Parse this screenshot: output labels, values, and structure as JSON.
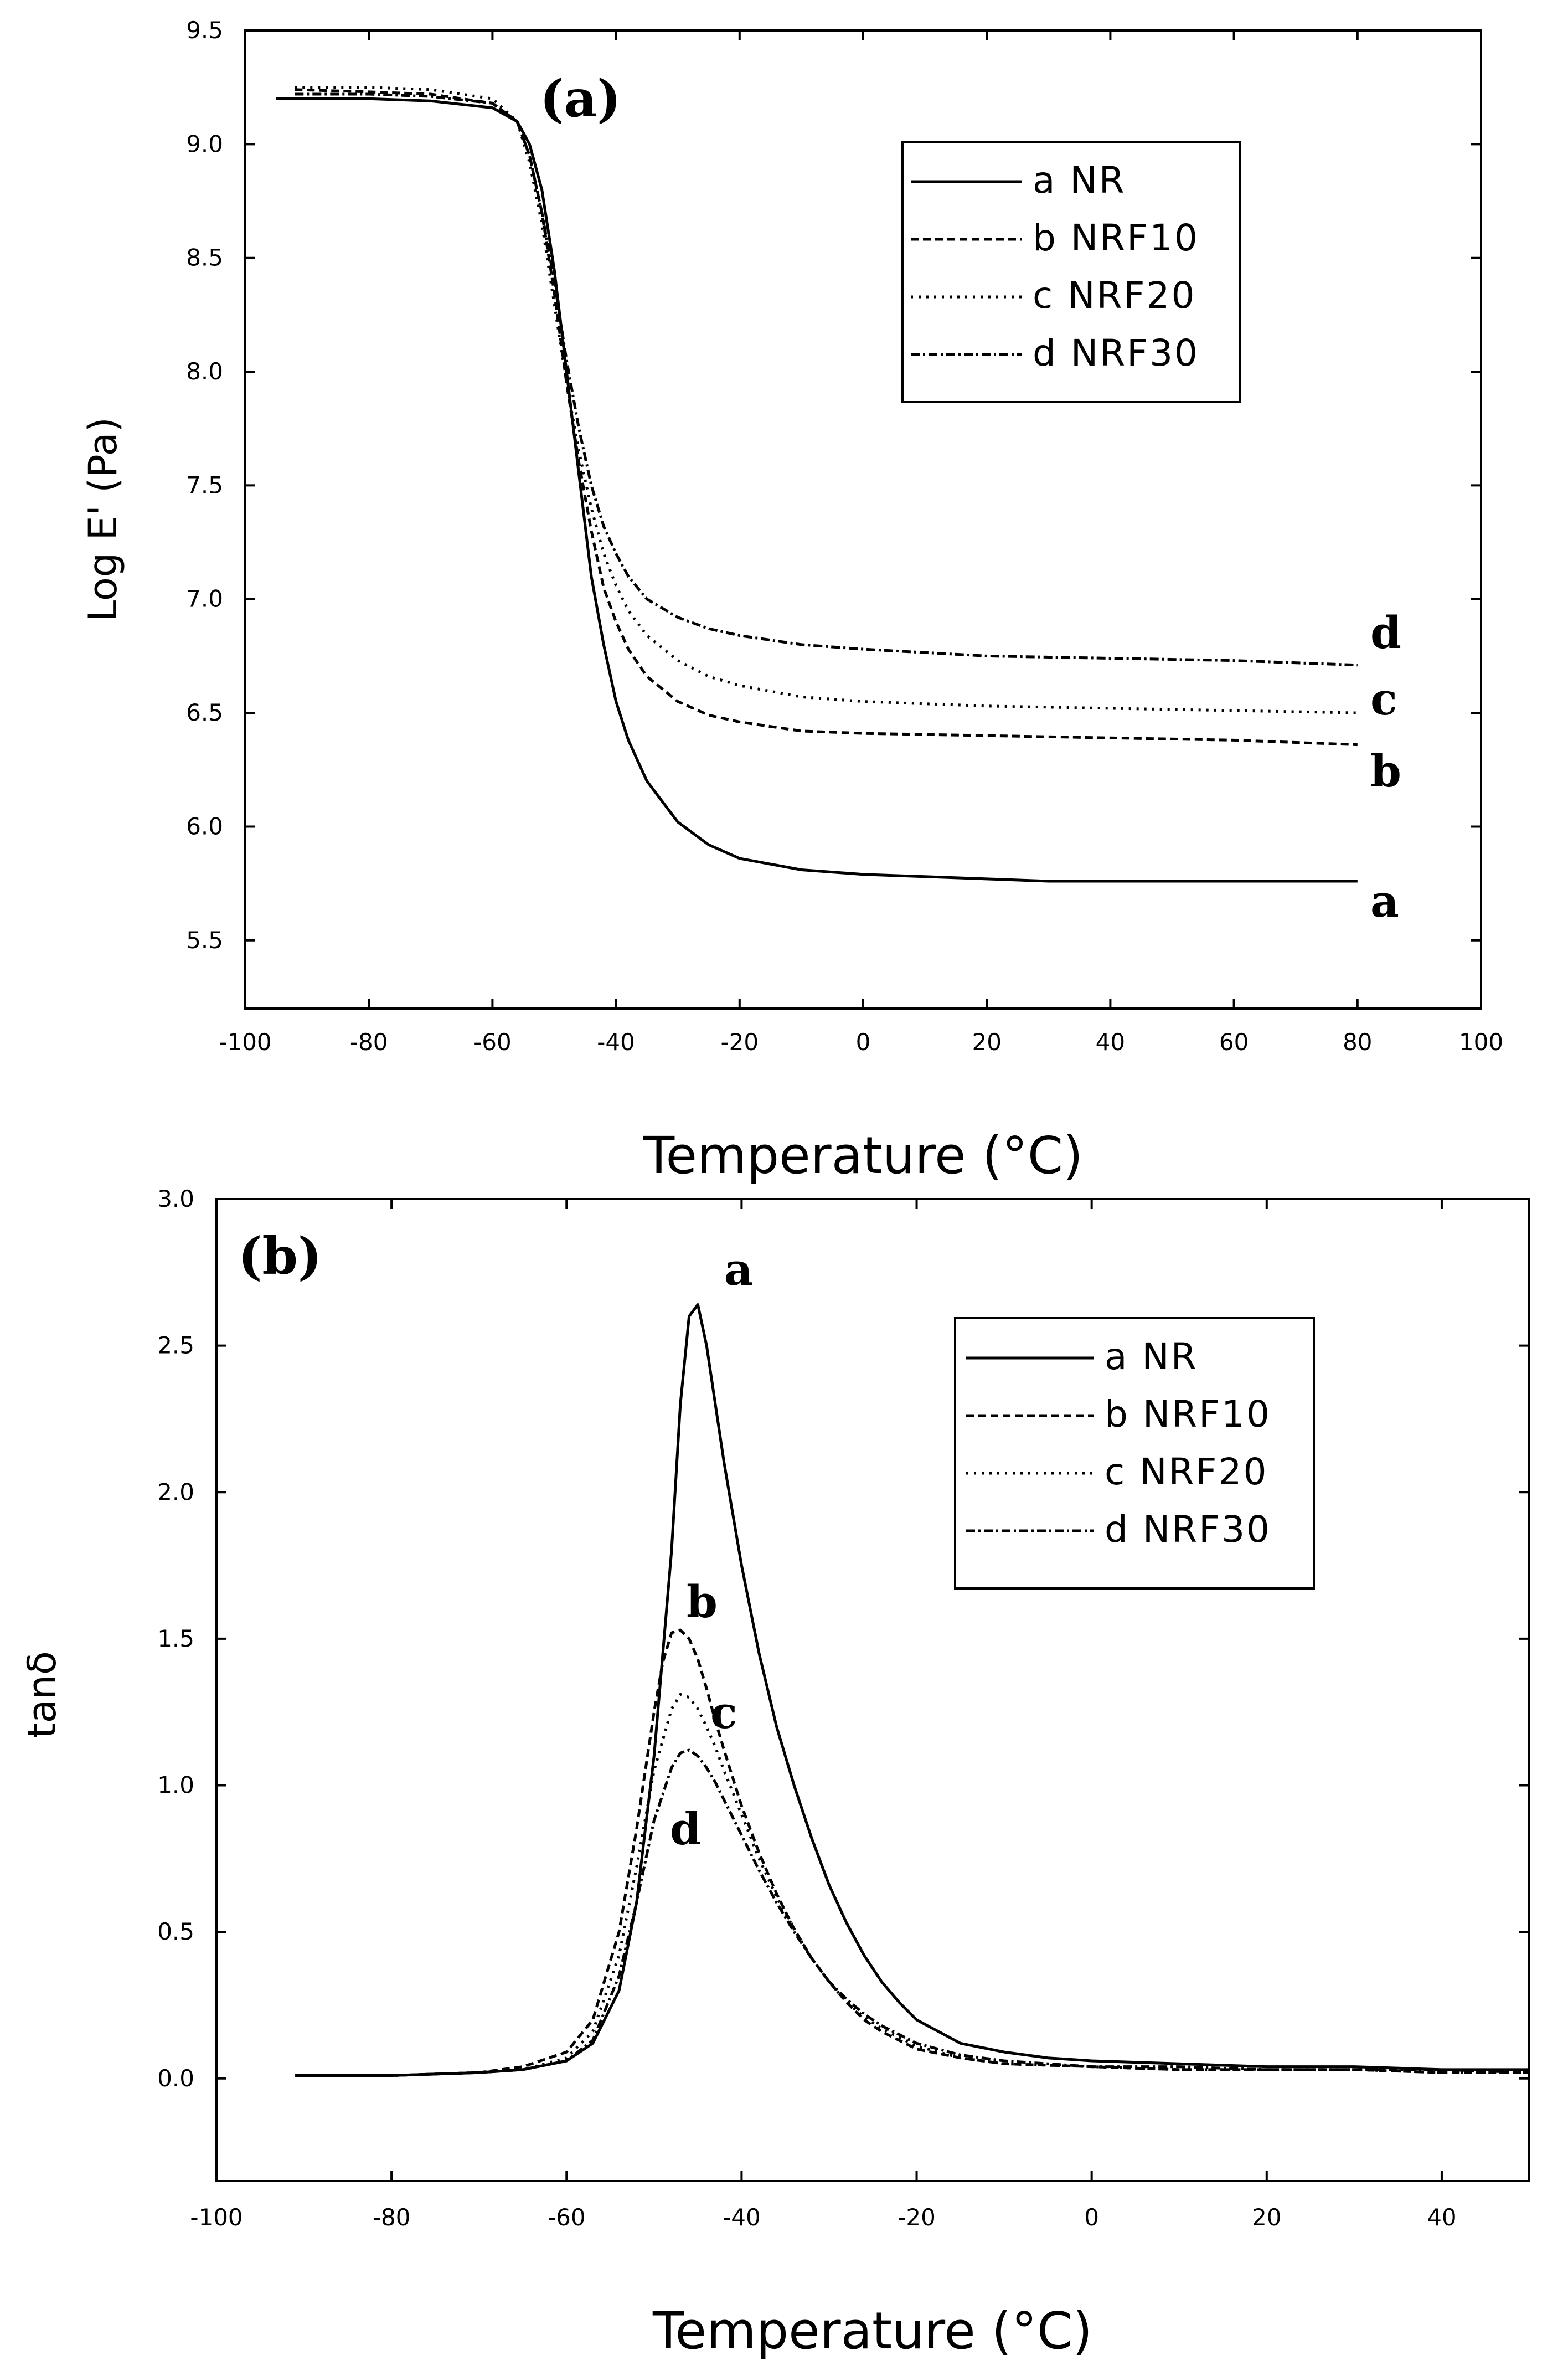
{
  "chart_data": [
    {
      "type": "line",
      "panel_label": "(a)",
      "xlabel": "Temperature (°C)",
      "ylabel": "Log E' (Pa)",
      "xlim": [
        -100,
        100
      ],
      "ylim": [
        5.2,
        9.5
      ],
      "xticks": [
        "-100",
        "-80",
        "-60",
        "-40",
        "-20",
        "0",
        "20",
        "40",
        "60",
        "80",
        "100"
      ],
      "yticks": [
        "5.5",
        "6.0",
        "6.5",
        "7.0",
        "7.5",
        "8.0",
        "8.5",
        "9.0",
        "9.5"
      ],
      "legend_position": "top-right",
      "series": [
        {
          "name": "a NR",
          "label": "a",
          "style": "solid",
          "x": [
            -95,
            -80,
            -70,
            -60,
            -56,
            -54,
            -52,
            -50,
            -48,
            -46,
            -44,
            -42,
            -40,
            -38,
            -35,
            -30,
            -25,
            -20,
            -10,
            0,
            10,
            20,
            30,
            40,
            50,
            60,
            70,
            80
          ],
          "y": [
            9.2,
            9.2,
            9.19,
            9.16,
            9.1,
            9.0,
            8.8,
            8.45,
            8.0,
            7.55,
            7.1,
            6.8,
            6.55,
            6.38,
            6.2,
            6.02,
            5.92,
            5.86,
            5.81,
            5.79,
            5.78,
            5.77,
            5.76,
            5.76,
            5.76,
            5.76,
            5.76,
            5.76
          ]
        },
        {
          "name": "b NRF10",
          "label": "b",
          "style": "dashed",
          "x": [
            -92,
            -80,
            -70,
            -60,
            -56,
            -54,
            -52,
            -50,
            -48,
            -46,
            -44,
            -42,
            -40,
            -38,
            -35,
            -30,
            -25,
            -20,
            -10,
            0,
            20,
            40,
            60,
            80
          ],
          "y": [
            9.24,
            9.23,
            9.22,
            9.18,
            9.1,
            8.95,
            8.7,
            8.35,
            7.95,
            7.6,
            7.3,
            7.05,
            6.9,
            6.78,
            6.66,
            6.55,
            6.49,
            6.46,
            6.42,
            6.41,
            6.4,
            6.39,
            6.38,
            6.36
          ]
        },
        {
          "name": "c NRF20",
          "label": "c",
          "style": "dotted",
          "x": [
            -92,
            -80,
            -70,
            -60,
            -56,
            -54,
            -52,
            -50,
            -48,
            -46,
            -44,
            -42,
            -40,
            -38,
            -35,
            -30,
            -25,
            -20,
            -10,
            0,
            20,
            40,
            60,
            80
          ],
          "y": [
            9.25,
            9.25,
            9.24,
            9.2,
            9.1,
            8.92,
            8.65,
            8.3,
            7.95,
            7.65,
            7.4,
            7.2,
            7.06,
            6.95,
            6.84,
            6.73,
            6.66,
            6.62,
            6.57,
            6.55,
            6.53,
            6.52,
            6.51,
            6.5
          ]
        },
        {
          "name": "d NRF30",
          "label": "d",
          "style": "dashdot",
          "x": [
            -92,
            -80,
            -70,
            -60,
            -56,
            -54,
            -52,
            -50,
            -48,
            -46,
            -44,
            -42,
            -40,
            -38,
            -35,
            -30,
            -25,
            -20,
            -10,
            0,
            20,
            40,
            60,
            80
          ],
          "y": [
            9.22,
            9.22,
            9.21,
            9.18,
            9.1,
            8.95,
            8.7,
            8.4,
            8.05,
            7.75,
            7.5,
            7.32,
            7.2,
            7.1,
            7.0,
            6.92,
            6.87,
            6.84,
            6.8,
            6.78,
            6.75,
            6.74,
            6.73,
            6.71
          ]
        }
      ]
    },
    {
      "type": "line",
      "panel_label": "(b)",
      "xlabel": "Temperature (°C)",
      "ylabel": "tanδ",
      "xlim": [
        -100,
        50
      ],
      "ylim": [
        -0.35,
        3.0
      ],
      "xticks": [
        "-100",
        "-80",
        "-60",
        "-40",
        "-20",
        "0",
        "20",
        "40"
      ],
      "yticks": [
        "0.0",
        "0.5",
        "1.0",
        "1.5",
        "2.0",
        "2.5",
        "3.0"
      ],
      "legend_position": "top-right",
      "series": [
        {
          "name": "a NR",
          "label": "a",
          "style": "solid",
          "x": [
            -91,
            -80,
            -70,
            -65,
            -60,
            -57,
            -54,
            -52,
            -50,
            -48,
            -47,
            -46,
            -45,
            -44,
            -43,
            -42,
            -40,
            -38,
            -36,
            -34,
            -32,
            -30,
            -28,
            -26,
            -24,
            -22,
            -20,
            -15,
            -10,
            -5,
            0,
            10,
            20,
            30,
            40,
            50
          ],
          "y": [
            0.01,
            0.01,
            0.02,
            0.03,
            0.06,
            0.12,
            0.3,
            0.6,
            1.1,
            1.8,
            2.3,
            2.6,
            2.64,
            2.5,
            2.3,
            2.1,
            1.75,
            1.45,
            1.2,
            1.0,
            0.82,
            0.66,
            0.53,
            0.42,
            0.33,
            0.26,
            0.2,
            0.12,
            0.09,
            0.07,
            0.06,
            0.05,
            0.04,
            0.04,
            0.03,
            0.03
          ]
        },
        {
          "name": "b NRF10",
          "label": "b",
          "style": "dashed",
          "x": [
            -91,
            -80,
            -70,
            -65,
            -60,
            -57,
            -54,
            -52,
            -50,
            -49,
            -48,
            -47,
            -46,
            -45,
            -44,
            -43,
            -42,
            -40,
            -38,
            -36,
            -34,
            -32,
            -30,
            -28,
            -26,
            -24,
            -20,
            -15,
            -10,
            0,
            10,
            20,
            30,
            40,
            50
          ],
          "y": [
            0.01,
            0.01,
            0.02,
            0.04,
            0.09,
            0.2,
            0.5,
            0.85,
            1.25,
            1.42,
            1.52,
            1.53,
            1.5,
            1.43,
            1.33,
            1.22,
            1.12,
            0.93,
            0.77,
            0.63,
            0.51,
            0.41,
            0.33,
            0.26,
            0.2,
            0.16,
            0.1,
            0.07,
            0.05,
            0.04,
            0.03,
            0.03,
            0.03,
            0.02,
            0.02
          ]
        },
        {
          "name": "c NRF20",
          "label": "c",
          "style": "dotted",
          "x": [
            -91,
            -80,
            -70,
            -65,
            -60,
            -57,
            -54,
            -52,
            -50,
            -48,
            -47,
            -46,
            -45,
            -44,
            -43,
            -42,
            -40,
            -38,
            -36,
            -34,
            -32,
            -30,
            -28,
            -26,
            -24,
            -20,
            -15,
            -10,
            0,
            10,
            20,
            30,
            40,
            50
          ],
          "y": [
            0.01,
            0.01,
            0.02,
            0.03,
            0.07,
            0.16,
            0.42,
            0.72,
            1.05,
            1.26,
            1.31,
            1.3,
            1.26,
            1.2,
            1.13,
            1.05,
            0.9,
            0.75,
            0.62,
            0.51,
            0.41,
            0.33,
            0.26,
            0.21,
            0.17,
            0.11,
            0.07,
            0.05,
            0.04,
            0.03,
            0.03,
            0.03,
            0.02,
            0.02
          ]
        },
        {
          "name": "d NRF30",
          "label": "d",
          "style": "dashdot",
          "x": [
            -91,
            -80,
            -70,
            -65,
            -60,
            -57,
            -54,
            -52,
            -50,
            -48,
            -47,
            -46,
            -45,
            -44,
            -43,
            -42,
            -40,
            -38,
            -36,
            -34,
            -32,
            -30,
            -28,
            -26,
            -24,
            -20,
            -15,
            -10,
            0,
            10,
            20,
            30,
            40,
            50
          ],
          "y": [
            0.01,
            0.01,
            0.02,
            0.03,
            0.06,
            0.13,
            0.35,
            0.6,
            0.88,
            1.06,
            1.11,
            1.12,
            1.1,
            1.06,
            1.01,
            0.95,
            0.83,
            0.71,
            0.6,
            0.5,
            0.41,
            0.33,
            0.27,
            0.22,
            0.18,
            0.12,
            0.08,
            0.06,
            0.04,
            0.04,
            0.03,
            0.03,
            0.03,
            0.02
          ]
        }
      ]
    }
  ]
}
